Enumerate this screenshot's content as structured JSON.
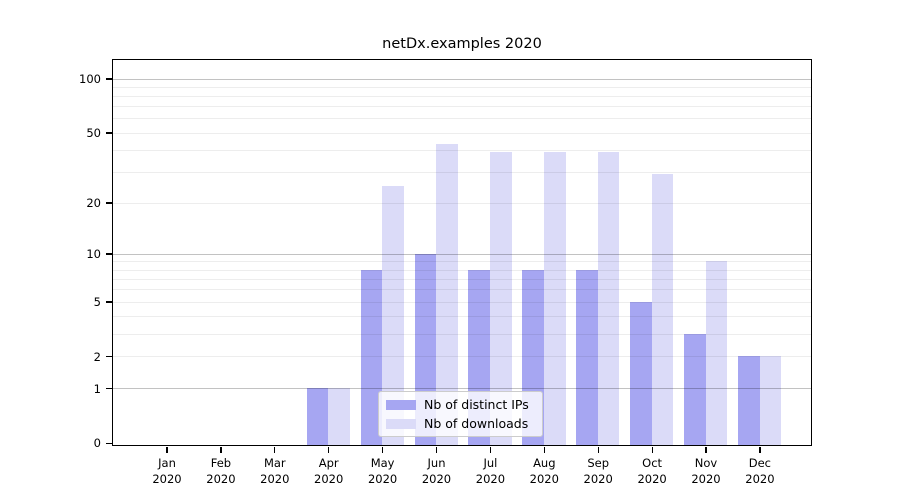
{
  "chart_data": {
    "type": "bar",
    "title": "netDx.examples 2020",
    "categories": [
      "Jan",
      "Feb",
      "Mar",
      "Apr",
      "May",
      "Jun",
      "Jul",
      "Aug",
      "Sep",
      "Oct",
      "Nov",
      "Dec"
    ],
    "category_year": "2020",
    "series": [
      {
        "name": "Nb of distinct IPs",
        "color": "#a6a6f2",
        "values": [
          0,
          0,
          0,
          1,
          8,
          10,
          8,
          8,
          8,
          5,
          3,
          2
        ]
      },
      {
        "name": "Nb of downloads",
        "color": "#dbdbf8",
        "values": [
          0,
          0,
          0,
          1,
          25,
          43,
          39,
          39,
          39,
          29,
          9,
          2
        ]
      }
    ],
    "y_axis": {
      "scale": "log1p",
      "tick_labels": [
        100,
        50,
        20,
        10,
        5,
        2,
        1,
        0
      ],
      "ylim": [
        0,
        126
      ]
    },
    "grid": {
      "on": true,
      "minor_lines": [
        2,
        3,
        4,
        5,
        6,
        7,
        8,
        9,
        20,
        30,
        40,
        50,
        60,
        70,
        80,
        90
      ],
      "major_lines": [
        1,
        10,
        100
      ],
      "minor_color": "rgba(0,0,0,0.07)",
      "major_color": "rgba(0,0,0,0.24)"
    },
    "legend": {
      "location": "lower center",
      "background": "rgba(255,255,255,0.8)",
      "border_color": "#cccccc"
    },
    "colors": {
      "axis": "#000000",
      "background": "#ffffff"
    }
  }
}
